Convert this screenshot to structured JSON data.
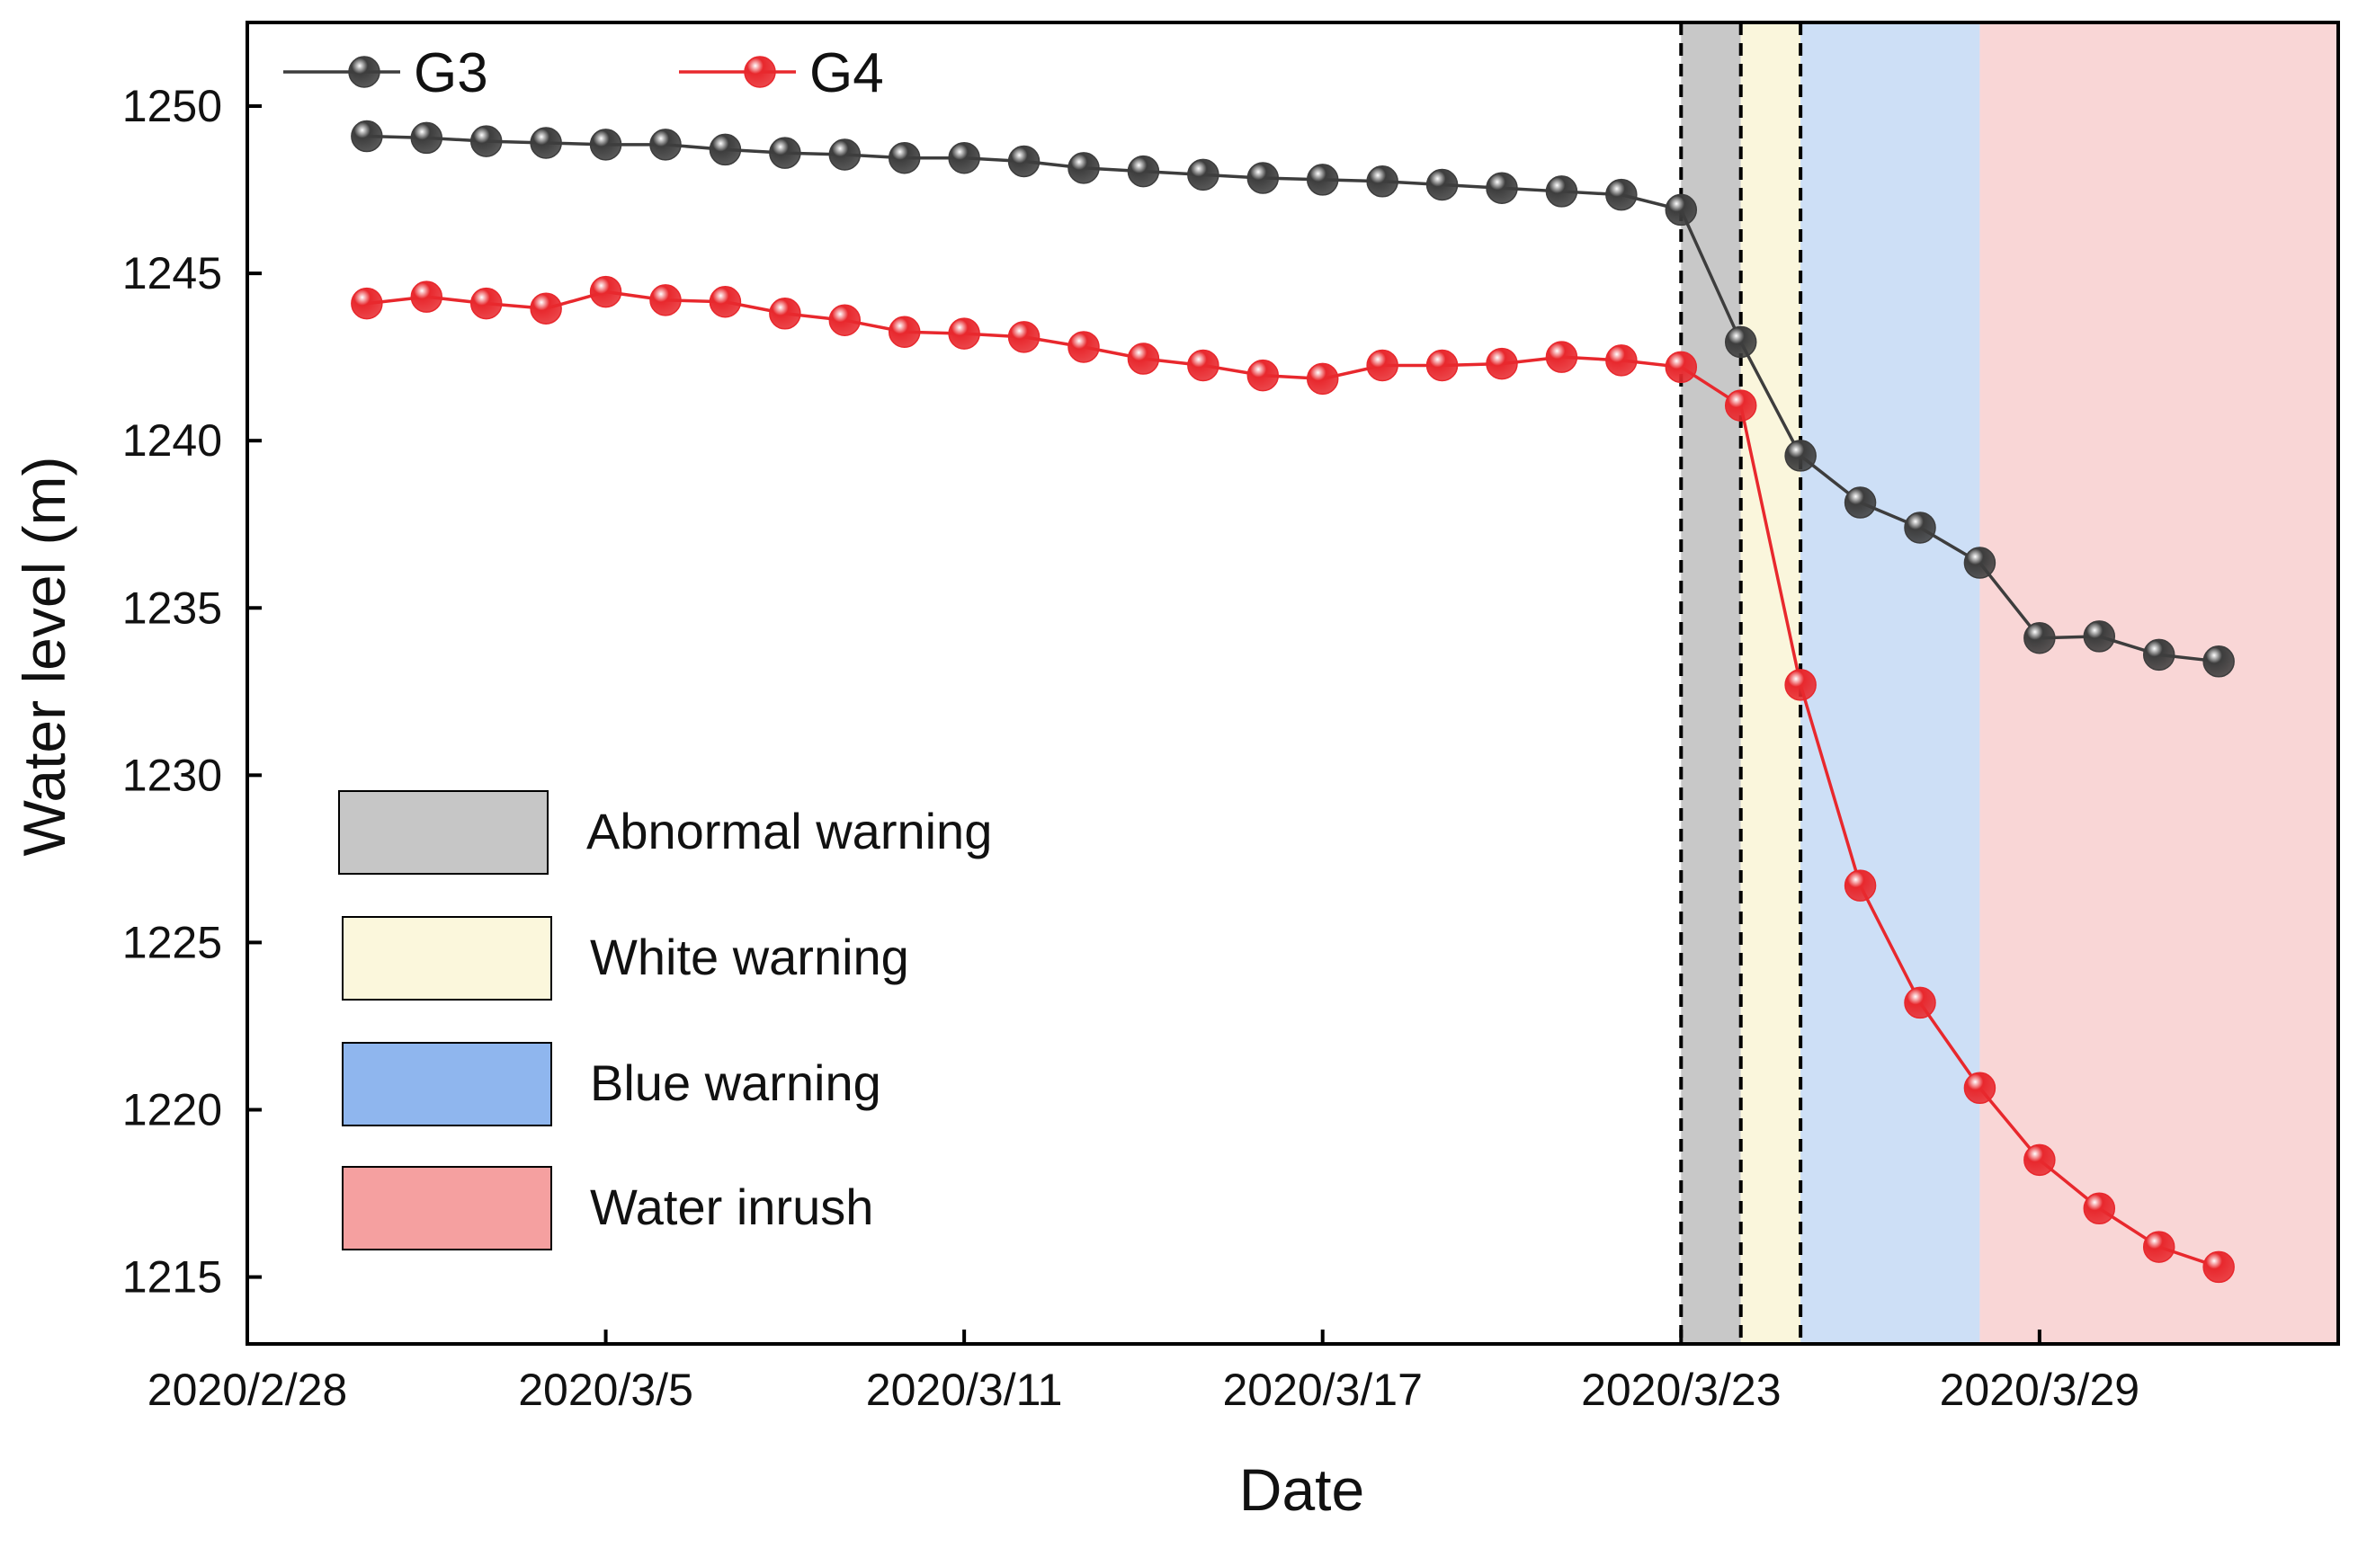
{
  "chart_data": {
    "type": "line",
    "title": "",
    "xlabel": "Date",
    "ylabel": "Water level (m)",
    "xlim": [
      0,
      35
    ],
    "ylim": [
      1213,
      1252.5
    ],
    "x_ticks": [
      {
        "x": 0,
        "label": "2020/2/28"
      },
      {
        "x": 6,
        "label": "2020/3/5"
      },
      {
        "x": 12,
        "label": "2020/3/11"
      },
      {
        "x": 18,
        "label": "2020/3/17"
      },
      {
        "x": 24,
        "label": "2020/3/23"
      },
      {
        "x": 30,
        "label": "2020/3/29"
      }
    ],
    "y_ticks": [
      {
        "y": 1215,
        "label": "1215"
      },
      {
        "y": 1220,
        "label": "1220"
      },
      {
        "y": 1225,
        "label": "1225"
      },
      {
        "y": 1230,
        "label": "1230"
      },
      {
        "y": 1235,
        "label": "1235"
      },
      {
        "y": 1240,
        "label": "1240"
      },
      {
        "y": 1245,
        "label": "1245"
      },
      {
        "y": 1250,
        "label": "1250"
      }
    ],
    "x": [
      2,
      3,
      4,
      5,
      6,
      7,
      8,
      9,
      10,
      11,
      12,
      13,
      14,
      15,
      16,
      17,
      18,
      19,
      20,
      21,
      22,
      23,
      24,
      25,
      26,
      27,
      28,
      29,
      30,
      31,
      32,
      33
    ],
    "series": [
      {
        "name": "G3",
        "color": "#3d3d3d",
        "values": [
          1249.1,
          1249.05,
          1248.95,
          1248.9,
          1248.85,
          1248.85,
          1248.7,
          1248.6,
          1248.55,
          1248.45,
          1248.45,
          1248.35,
          1248.15,
          1248.05,
          1247.95,
          1247.85,
          1247.8,
          1247.75,
          1247.65,
          1247.55,
          1247.45,
          1247.35,
          1246.9,
          1242.95,
          1239.55,
          1238.15,
          1237.4,
          1236.35,
          1234.1,
          1234.15,
          1233.6,
          1233.4
        ]
      },
      {
        "name": "G4",
        "color": "#e8282d",
        "values": [
          1244.1,
          1244.3,
          1244.1,
          1243.95,
          1244.45,
          1244.2,
          1244.15,
          1243.8,
          1243.6,
          1243.25,
          1243.2,
          1243.1,
          1242.8,
          1242.45,
          1242.25,
          1241.95,
          1241.85,
          1242.25,
          1242.25,
          1242.3,
          1242.5,
          1242.4,
          1242.2,
          1241.05,
          1232.7,
          1226.7,
          1223.2,
          1220.65,
          1218.5,
          1217.05,
          1215.9,
          1215.3
        ]
      }
    ],
    "warning_zones": [
      {
        "name": "Abnormal warning",
        "x_start": 24,
        "x_end": 25,
        "fill": "#c8c8c8",
        "swatch": "#c6c6c6"
      },
      {
        "name": "White warning",
        "x_start": 25,
        "x_end": 26,
        "fill": "#faf6dc",
        "swatch": "#fbf7dc"
      },
      {
        "name": "Blue warning",
        "x_start": 26,
        "x_end": 29,
        "fill": "#cddff6",
        "swatch": "#8fb6ee"
      },
      {
        "name": "Water inrush",
        "x_start": 29,
        "x_end": 35,
        "fill": "#f9d6d6",
        "swatch": "#f5a0a0"
      }
    ],
    "dashed_lines_x": [
      24,
      25,
      26
    ],
    "grid": false,
    "legend_series_position": "top-left",
    "legend_zones_position": "bottom-left"
  }
}
